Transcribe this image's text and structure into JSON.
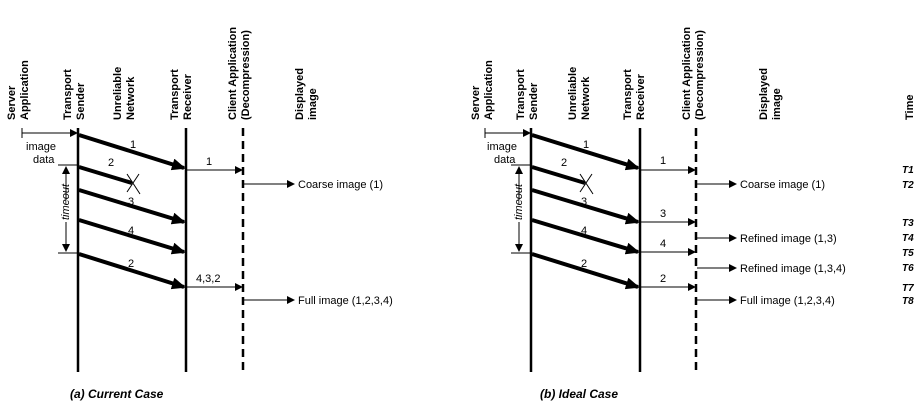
{
  "panel_a": {
    "columns": {
      "server": [
        "Server",
        "Application"
      ],
      "sender": [
        "Transport",
        "Sender"
      ],
      "network": [
        "Unreliable",
        "Network"
      ],
      "receiver": [
        "Transport",
        "Receiver"
      ],
      "client": [
        "Client Application",
        "(Decompression)"
      ],
      "display": [
        "Displayed",
        "image"
      ]
    },
    "image_data": [
      "image",
      "data"
    ],
    "timeout": "timeout",
    "packets": [
      "1",
      "2",
      "3",
      "4",
      "2"
    ],
    "receiver_labels": [
      "1",
      "4,3,2"
    ],
    "displayed": [
      "Coarse image (1)",
      "Full image (1,2,3,4)"
    ],
    "caption": "(a) Current Case"
  },
  "panel_b": {
    "columns": {
      "server": [
        "Server",
        "Application"
      ],
      "sender": [
        "Transport",
        "Sender"
      ],
      "network": [
        "Unreliable",
        "Network"
      ],
      "receiver": [
        "Transport",
        "Receiver"
      ],
      "client": [
        "Client Application",
        "(Decompression)"
      ],
      "display": [
        "Displayed",
        "image"
      ],
      "time": "Time"
    },
    "image_data": [
      "image",
      "data"
    ],
    "timeout": "timeout",
    "packets": [
      "1",
      "2",
      "3",
      "4",
      "2"
    ],
    "receiver_labels": [
      "1",
      "3",
      "4",
      "2"
    ],
    "displayed": [
      "Coarse image (1)",
      "Refined image (1,3)",
      "Refined image (1,3,4)",
      "Full image (1,2,3,4)"
    ],
    "times": [
      "T1",
      "T2",
      "T3",
      "T4",
      "T5",
      "T6",
      "T7",
      "T8"
    ],
    "caption": "(b) Ideal Case"
  }
}
